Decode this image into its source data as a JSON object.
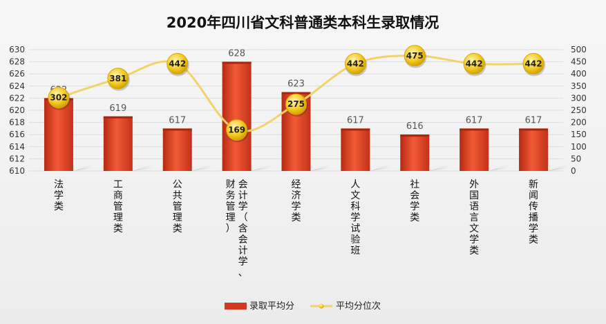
{
  "chart_data": {
    "type": "bar",
    "title": "2020年四川省文科普通类本科生录取情况",
    "categories": [
      "法学类",
      "工商管理类",
      "公共管理类",
      "会计学（含会计学、财务管理）",
      "经济学类",
      "人文科学试验班",
      "社会学类",
      "外国语言文学类",
      "新闻传播学类"
    ],
    "series": [
      {
        "name": "录取平均分",
        "type": "bar",
        "axis": "left",
        "values": [
          622,
          619,
          617,
          628,
          623,
          617,
          616,
          617,
          617
        ]
      },
      {
        "name": "平均分位次",
        "type": "line",
        "axis": "right",
        "values": [
          302,
          381,
          442,
          169,
          275,
          442,
          475,
          442,
          442
        ]
      }
    ],
    "ylim": [
      610,
      630
    ],
    "yticks": [
      "610",
      "612",
      "614",
      "616",
      "618",
      "620",
      "622",
      "624",
      "626",
      "628",
      "630"
    ],
    "y2lim": [
      0,
      500
    ],
    "y2ticks": [
      "0",
      "50",
      "100",
      "150",
      "200",
      "250",
      "300",
      "350",
      "400",
      "450",
      "500"
    ],
    "legend_position": "bottom",
    "colors": {
      "bar": "#d13a1e",
      "bar_light": "#f25a36",
      "line": "#f2d36b",
      "marker": "#f0c419"
    },
    "grid": true
  }
}
